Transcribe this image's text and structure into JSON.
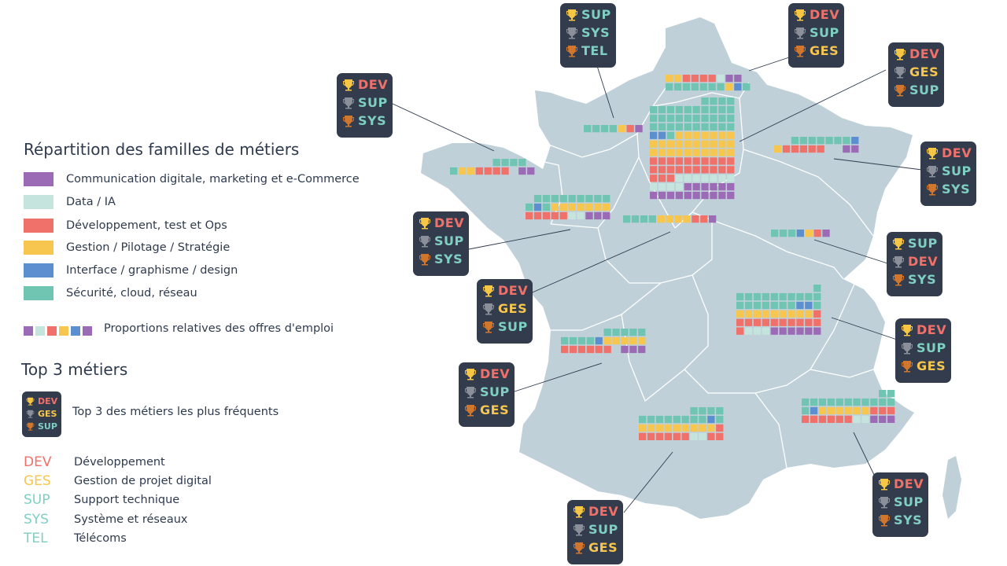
{
  "legend": {
    "title": "Répartition des familles de métiers",
    "categories": [
      {
        "key": "com",
        "label": "Communication digitale, marketing et e-Commerce",
        "color": "#9b6bb5"
      },
      {
        "key": "data",
        "label": "Data / IA",
        "color": "#c5e4dd"
      },
      {
        "key": "dev",
        "label": "Développement, test et Ops",
        "color": "#f0706a"
      },
      {
        "key": "ges",
        "label": "Gestion / Pilotage / Stratégie",
        "color": "#f7c64f"
      },
      {
        "key": "ui",
        "label": "Interface / graphisme / design",
        "color": "#5b8fcf"
      },
      {
        "key": "sec",
        "label": "Sécurité, cloud, réseau",
        "color": "#6fc4b2"
      }
    ],
    "proportions_label": "Proportions relatives des offres d'emploi"
  },
  "top3": {
    "title": "Top 3 métiers",
    "example_label": "Top 3 des métiers les plus fréquents",
    "example_codes": [
      "DEV",
      "GES",
      "SUP"
    ],
    "abbreviations": [
      {
        "code": "DEV",
        "label": "Développement",
        "color": "#f0706a"
      },
      {
        "code": "GES",
        "label": "Gestion de projet digital",
        "color": "#f7c64f"
      },
      {
        "code": "SUP",
        "label": "Support technique",
        "color": "#7fcfc3"
      },
      {
        "code": "SYS",
        "label": "Système et réseaux",
        "color": "#7fcfc3"
      },
      {
        "code": "TEL",
        "label": "Télécoms",
        "color": "#7fcfc3"
      }
    ]
  },
  "colors": {
    "map_fill": "#bfd0d9",
    "map_border": "#ffffff",
    "badge_bg": "#333c4c",
    "gold": "#f6c644",
    "silver": "#8a8f99",
    "bronze": "#d1762d"
  },
  "regions": [
    {
      "id": "normandie",
      "top3": [
        "SUP",
        "SYS",
        "TEL"
      ]
    },
    {
      "id": "hauts-de-france",
      "top3": [
        "DEV",
        "SUP",
        "GES"
      ]
    },
    {
      "id": "ile-de-france",
      "top3": [
        "DEV",
        "GES",
        "SUP"
      ]
    },
    {
      "id": "grand-est",
      "top3": [
        "DEV",
        "SUP",
        "SYS"
      ]
    },
    {
      "id": "bretagne",
      "top3": [
        "DEV",
        "SUP",
        "SYS"
      ]
    },
    {
      "id": "pays-de-la-loire",
      "top3": [
        "DEV",
        "SUP",
        "SYS"
      ]
    },
    {
      "id": "centre-val-de-loire",
      "top3": [
        "DEV",
        "GES",
        "SUP"
      ]
    },
    {
      "id": "bourgogne-franche-comte",
      "top3": [
        "SUP",
        "DEV",
        "SYS"
      ]
    },
    {
      "id": "auvergne-rhone-alpes",
      "top3": [
        "DEV",
        "SUP",
        "GES"
      ]
    },
    {
      "id": "nouvelle-aquitaine",
      "top3": [
        "DEV",
        "SUP",
        "GES"
      ]
    },
    {
      "id": "occitanie",
      "top3": [
        "DEV",
        "SUP",
        "GES"
      ]
    },
    {
      "id": "provence-alpes-cote-azur",
      "top3": [
        "DEV",
        "SUP",
        "SYS"
      ]
    }
  ]
}
